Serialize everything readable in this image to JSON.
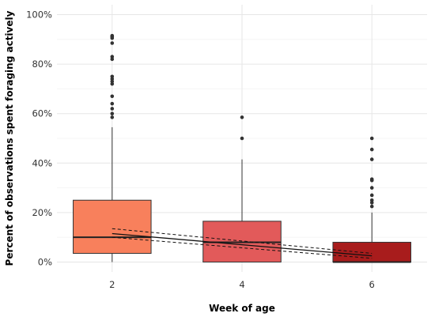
{
  "chart_data": {
    "type": "boxplot",
    "title": "",
    "xlabel": "Week of age",
    "ylabel": "Percent of observations spent foraging actively",
    "categories": [
      "2",
      "4",
      "6"
    ],
    "x_values": [
      2,
      4,
      6
    ],
    "xlim": [
      1.15,
      6.85
    ],
    "ylim": [
      -0.04,
      1.04
    ],
    "y_ticks": [
      0,
      0.2,
      0.4,
      0.6,
      0.8,
      1.0
    ],
    "y_tick_labels": [
      "0%",
      "20%",
      "40%",
      "60%",
      "80%",
      "100%"
    ],
    "y_minor_ticks": [
      0.1,
      0.3,
      0.5,
      0.7,
      0.9
    ],
    "grid": true,
    "legend": "none",
    "boxes": [
      {
        "x": 2,
        "min": 0,
        "q1": 0.035,
        "median": 0.1,
        "q3": 0.25,
        "max": 0.545,
        "outliers": [
          0.915,
          0.91,
          0.905,
          0.885,
          0.83,
          0.82,
          0.75,
          0.74,
          0.73,
          0.72,
          0.67,
          0.64,
          0.62,
          0.6,
          0.585
        ],
        "fill": "#F8805C"
      },
      {
        "x": 4,
        "min": 0,
        "q1": 0.0,
        "median": 0.08,
        "q3": 0.165,
        "max": 0.415,
        "outliers": [
          0.585,
          0.5
        ],
        "fill": "#E25A5A"
      },
      {
        "x": 6,
        "min": 0,
        "q1": 0.0,
        "median": 0.0,
        "q3": 0.08,
        "max": 0.2,
        "outliers": [
          0.5,
          0.455,
          0.415,
          0.335,
          0.33,
          0.3,
          0.27,
          0.25,
          0.24,
          0.225
        ],
        "fill": "#A81C1C"
      }
    ],
    "trend": {
      "x": [
        2,
        6
      ],
      "fit": [
        0.115,
        0.025
      ],
      "ci_lower": [
        0.1,
        0.015
      ],
      "ci_upper": [
        0.135,
        0.035
      ]
    }
  }
}
